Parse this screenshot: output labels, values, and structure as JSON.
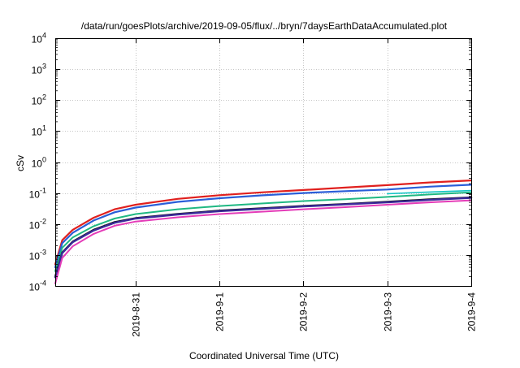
{
  "chart_data": {
    "type": "line",
    "title": "/data/run/goesPlots/archive/2019-09-05/flux/../bryn/7daysEarthDataAccumulated.plot",
    "xlabel": "Coordinated Universal Time (UTC)",
    "ylabel": "cSv",
    "yscale": "log",
    "ylim": [
      0.0001,
      10000
    ],
    "xlim": [
      "2019-08-30T01:00",
      "2019-09-04T00:00"
    ],
    "grid": true,
    "x_ticks": [
      {
        "x": "2019-08-31",
        "label": "2019-8-31"
      },
      {
        "x": "2019-09-01",
        "label": "2019-9-1"
      },
      {
        "x": "2019-09-02",
        "label": "2019-9-2"
      },
      {
        "x": "2019-09-03",
        "label": "2019-9-3"
      },
      {
        "x": "2019-09-04",
        "label": "2019-9-4"
      }
    ],
    "y_ticks": [
      {
        "value": 0.0001,
        "base": "10",
        "exp": "-4"
      },
      {
        "value": 0.001,
        "base": "10",
        "exp": "-3"
      },
      {
        "value": 0.01,
        "base": "10",
        "exp": "-2"
      },
      {
        "value": 0.1,
        "base": "10",
        "exp": "-1"
      },
      {
        "value": 1,
        "base": "10",
        "exp": "0"
      },
      {
        "value": 10,
        "base": "10",
        "exp": "1"
      },
      {
        "value": 100,
        "base": "10",
        "exp": "2"
      },
      {
        "value": 1000,
        "base": "10",
        "exp": "3"
      },
      {
        "value": 10000,
        "base": "10",
        "exp": "4"
      }
    ],
    "series": [
      {
        "color": "#e0201e",
        "width": 2.2,
        "x": [
          "2019-08-30T01:00",
          "2019-08-30T03:00",
          "2019-08-30T06:00",
          "2019-08-30T12:00",
          "2019-08-30T18:00",
          "2019-08-31T00:00",
          "2019-08-31T12:00",
          "2019-09-01T00:00",
          "2019-09-01T12:00",
          "2019-09-02T00:00",
          "2019-09-02T12:00",
          "2019-09-03T00:00",
          "2019-09-03T12:00",
          "2019-09-04T00:00"
        ],
        "y": [
          0.0005,
          0.003,
          0.0065,
          0.016,
          0.03,
          0.042,
          0.065,
          0.085,
          0.105,
          0.125,
          0.15,
          0.18,
          0.22,
          0.255
        ]
      },
      {
        "color": "#2a5ed8",
        "width": 2.2,
        "x": [
          "2019-08-30T01:00",
          "2019-08-30T03:00",
          "2019-08-30T06:00",
          "2019-08-30T12:00",
          "2019-08-30T18:00",
          "2019-08-31T00:00",
          "2019-08-31T12:00",
          "2019-09-01T00:00",
          "2019-09-01T12:00",
          "2019-09-02T00:00",
          "2019-09-02T12:00",
          "2019-09-03T00:00",
          "2019-09-03T12:00",
          "2019-09-04T00:00"
        ],
        "y": [
          0.0004,
          0.0024,
          0.0052,
          0.013,
          0.024,
          0.034,
          0.052,
          0.068,
          0.084,
          0.1,
          0.115,
          0.13,
          0.16,
          0.185
        ]
      },
      {
        "color": "#12c4c4",
        "width": 1.6,
        "x": [
          "2019-09-03T00:00",
          "2019-09-03T12:00",
          "2019-09-04T00:00"
        ],
        "y": [
          0.095,
          0.108,
          0.12
        ]
      },
      {
        "color": "#1fb882",
        "width": 2.0,
        "x": [
          "2019-08-30T01:00",
          "2019-08-30T03:00",
          "2019-08-30T06:00",
          "2019-08-30T12:00",
          "2019-08-30T18:00",
          "2019-08-31T00:00",
          "2019-08-31T12:00",
          "2019-09-01T00:00",
          "2019-09-01T12:00",
          "2019-09-02T00:00",
          "2019-09-02T12:00",
          "2019-09-03T00:00",
          "2019-09-03T12:00",
          "2019-09-04T00:00"
        ],
        "y": [
          0.0003,
          0.0017,
          0.0037,
          0.0085,
          0.015,
          0.021,
          0.03,
          0.038,
          0.046,
          0.055,
          0.063,
          0.075,
          0.09,
          0.105
        ]
      },
      {
        "color": "#111111",
        "width": 2.4,
        "x": [
          "2019-08-30T01:00",
          "2019-08-30T03:00",
          "2019-08-30T06:00",
          "2019-08-30T12:00",
          "2019-08-30T18:00",
          "2019-08-31T00:00",
          "2019-08-31T12:00",
          "2019-09-01T00:00",
          "2019-09-01T12:00",
          "2019-09-02T00:00",
          "2019-09-02T12:00",
          "2019-09-03T00:00",
          "2019-09-03T12:00",
          "2019-09-04T00:00"
        ],
        "y": [
          0.0002,
          0.0012,
          0.0027,
          0.0065,
          0.0115,
          0.0155,
          0.021,
          0.027,
          0.032,
          0.038,
          0.044,
          0.052,
          0.062,
          0.072
        ]
      },
      {
        "color": "#3b2a9a",
        "width": 2.4,
        "x": [
          "2019-08-30T01:00",
          "2019-08-30T03:00",
          "2019-08-30T06:00",
          "2019-08-30T12:00",
          "2019-08-30T18:00",
          "2019-08-31T00:00",
          "2019-08-31T12:00",
          "2019-09-01T00:00",
          "2019-09-01T12:00",
          "2019-09-02T00:00",
          "2019-09-02T12:00",
          "2019-09-03T00:00",
          "2019-09-03T12:00",
          "2019-09-04T00:00"
        ],
        "y": [
          0.00019,
          0.00115,
          0.0026,
          0.0062,
          0.011,
          0.015,
          0.0203,
          0.026,
          0.031,
          0.037,
          0.043,
          0.05,
          0.06,
          0.07
        ]
      },
      {
        "color": "#e43cb8",
        "width": 2.0,
        "x": [
          "2019-08-30T01:00",
          "2019-08-30T03:00",
          "2019-08-30T06:00",
          "2019-08-30T12:00",
          "2019-08-30T18:00",
          "2019-08-31T00:00",
          "2019-08-31T12:00",
          "2019-09-01T00:00",
          "2019-09-01T12:00",
          "2019-09-02T00:00",
          "2019-09-02T12:00",
          "2019-09-03T00:00",
          "2019-09-03T12:00",
          "2019-09-04T00:00"
        ],
        "y": [
          0.00012,
          0.0008,
          0.0019,
          0.0048,
          0.0088,
          0.012,
          0.0165,
          0.021,
          0.025,
          0.03,
          0.035,
          0.042,
          0.05,
          0.058
        ]
      }
    ]
  }
}
